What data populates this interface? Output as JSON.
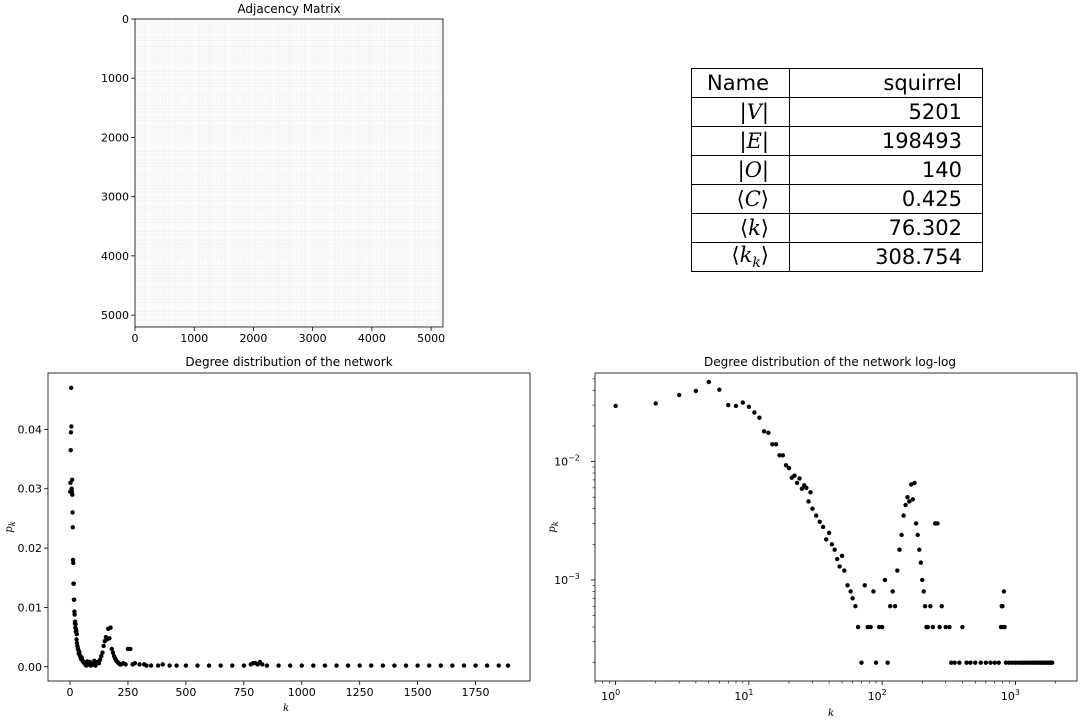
{
  "chart_data": [
    {
      "type": "heatmap",
      "title": "Adjacency Matrix",
      "xlim": [
        0,
        5201
      ],
      "ylim": [
        5201,
        0
      ],
      "xticks": [
        0,
        1000,
        2000,
        3000,
        4000,
        5000
      ],
      "yticks": [
        0,
        1000,
        2000,
        3000,
        4000,
        5000
      ],
      "grid": false
    },
    {
      "type": "table",
      "rows": [
        {
          "key": "Name",
          "value": "squirrel"
        },
        {
          "key": "|V|",
          "value": "5201"
        },
        {
          "key": "|E|",
          "value": "198493"
        },
        {
          "key": "|O|",
          "value": "140"
        },
        {
          "key": "⟨C⟩",
          "value": "0.425"
        },
        {
          "key": "⟨k⟩",
          "value": "76.302"
        },
        {
          "key": "⟨k_k⟩",
          "value": "308.754"
        }
      ]
    },
    {
      "type": "scatter",
      "title": "Degree distribution of the network",
      "xlabel": "k",
      "ylabel": "p_k",
      "xlim": [
        -95,
        1985
      ],
      "ylim": [
        -0.0024,
        0.0495
      ],
      "xticks": [
        0,
        250,
        500,
        750,
        1000,
        1250,
        1500,
        1750
      ],
      "yticks": [
        0,
        0.01,
        0.02,
        0.03,
        0.04
      ],
      "ytick_labels": [
        "0.00",
        "0.01",
        "0.02",
        "0.03",
        "0.04"
      ],
      "color": "#000000",
      "x": [
        1,
        2,
        3,
        4,
        5,
        6,
        7,
        8,
        9,
        10,
        11,
        12,
        13,
        14,
        15,
        16,
        17,
        18,
        19,
        20,
        21,
        22,
        23,
        24,
        25,
        26,
        27,
        28,
        29,
        30,
        32,
        34,
        36,
        38,
        40,
        42,
        44,
        46,
        48,
        50,
        52,
        55,
        58,
        60,
        63,
        66,
        70,
        74,
        78,
        82,
        86,
        90,
        95,
        100,
        105,
        110,
        115,
        120,
        125,
        130,
        135,
        140,
        145,
        150,
        155,
        160,
        165,
        170,
        175,
        180,
        185,
        190,
        195,
        200,
        205,
        210,
        215,
        220,
        230,
        240,
        250,
        260,
        270,
        280,
        300,
        320,
        330,
        350,
        380,
        400,
        430,
        460,
        500,
        550,
        600,
        650,
        700,
        750,
        780,
        790,
        800,
        810,
        820,
        830,
        850,
        900,
        950,
        1000,
        1050,
        1100,
        1150,
        1200,
        1250,
        1300,
        1350,
        1400,
        1450,
        1500,
        1550,
        1600,
        1650,
        1700,
        1750,
        1800,
        1850,
        1890
      ],
      "y": [
        0.0295,
        0.031,
        0.0365,
        0.0395,
        0.047,
        0.0405,
        0.03,
        0.0295,
        0.0315,
        0.029,
        0.026,
        0.0235,
        0.018,
        0.0175,
        0.014,
        0.014,
        0.0113,
        0.0113,
        0.0093,
        0.0088,
        0.0073,
        0.0076,
        0.0066,
        0.0072,
        0.0059,
        0.0063,
        0.006,
        0.0046,
        0.0055,
        0.004,
        0.0035,
        0.0031,
        0.0028,
        0.0022,
        0.0025,
        0.002,
        0.0018,
        0.0015,
        0.0013,
        0.0016,
        0.0012,
        0.0009,
        0.0008,
        0.0007,
        0.0006,
        0.0004,
        0.0002,
        0.0009,
        0.0004,
        0.0004,
        0.0008,
        0.0002,
        0.0004,
        0.0004,
        0.001,
        0.0002,
        0.0006,
        0.0008,
        0.0006,
        0.0012,
        0.0018,
        0.0024,
        0.0035,
        0.0043,
        0.005,
        0.0046,
        0.0064,
        0.0048,
        0.0066,
        0.003,
        0.0024,
        0.0018,
        0.0014,
        0.001,
        0.0008,
        0.0006,
        0.0004,
        0.0004,
        0.0006,
        0.0004,
        0.003,
        0.003,
        0.0004,
        0.0006,
        0.0004,
        0.0004,
        0.0002,
        0.0002,
        0.0002,
        0.0004,
        0.0002,
        0.0002,
        0.0002,
        0.0002,
        0.0002,
        0.0002,
        0.0002,
        0.0002,
        0.0004,
        0.0006,
        0.0006,
        0.0004,
        0.0008,
        0.0004,
        0.0002,
        0.0002,
        0.0002,
        0.0002,
        0.0002,
        0.0002,
        0.0002,
        0.0002,
        0.0002,
        0.0002,
        0.0002,
        0.0002,
        0.0002,
        0.0002,
        0.0002,
        0.0002,
        0.0002,
        0.0002,
        0.0002,
        0.0002,
        0.0002,
        0.0002
      ]
    },
    {
      "type": "scatter",
      "title": "Degree distribution of the network log-log",
      "xlabel": "k",
      "ylabel": "p_k",
      "x_scale": "log",
      "y_scale": "log",
      "xlim": [
        0.7,
        2900
      ],
      "ylim": [
        0.00014,
        0.056
      ],
      "xticks": [
        1,
        10,
        100,
        1000
      ],
      "xtick_labels": [
        "10^0",
        "10^1",
        "10^2",
        "10^3"
      ],
      "yticks": [
        0.001,
        0.01
      ],
      "ytick_labels": [
        "10^-3",
        "10^-2"
      ],
      "color": "#000000",
      "x": [
        1,
        2,
        3,
        4,
        5,
        6,
        7,
        8,
        9,
        10,
        11,
        12,
        13,
        14,
        15,
        16,
        17,
        18,
        19,
        20,
        21,
        22,
        23,
        24,
        25,
        26,
        27,
        28,
        29,
        30,
        32,
        34,
        36,
        38,
        40,
        42,
        44,
        46,
        48,
        50,
        52,
        55,
        58,
        60,
        63,
        66,
        70,
        74,
        78,
        82,
        86,
        90,
        95,
        100,
        105,
        110,
        115,
        120,
        125,
        130,
        135,
        140,
        145,
        150,
        155,
        160,
        165,
        170,
        175,
        180,
        185,
        190,
        195,
        200,
        205,
        210,
        215,
        220,
        230,
        240,
        250,
        260,
        270,
        280,
        300,
        320,
        330,
        350,
        380,
        400,
        430,
        460,
        500,
        550,
        600,
        650,
        700,
        750,
        780,
        790,
        800,
        810,
        820,
        830,
        850,
        900,
        950,
        1000,
        1050,
        1100,
        1150,
        1200,
        1250,
        1300,
        1350,
        1400,
        1450,
        1500,
        1550,
        1600,
        1650,
        1700,
        1750,
        1800,
        1850,
        1890
      ],
      "y": [
        0.0295,
        0.031,
        0.0365,
        0.0395,
        0.047,
        0.0405,
        0.03,
        0.0295,
        0.0315,
        0.029,
        0.026,
        0.0235,
        0.018,
        0.0175,
        0.014,
        0.014,
        0.0113,
        0.0113,
        0.0093,
        0.0088,
        0.0073,
        0.0076,
        0.0066,
        0.0072,
        0.0059,
        0.0063,
        0.006,
        0.0046,
        0.0055,
        0.004,
        0.0035,
        0.0031,
        0.0028,
        0.0022,
        0.0025,
        0.002,
        0.0018,
        0.0015,
        0.0013,
        0.0016,
        0.0012,
        0.0009,
        0.0008,
        0.0007,
        0.0006,
        0.0004,
        0.0002,
        0.0009,
        0.0004,
        0.0004,
        0.0008,
        0.0002,
        0.0004,
        0.0004,
        0.001,
        0.0002,
        0.0006,
        0.0008,
        0.0006,
        0.0012,
        0.0018,
        0.0024,
        0.0035,
        0.0043,
        0.005,
        0.0046,
        0.0064,
        0.0048,
        0.0066,
        0.003,
        0.0024,
        0.0018,
        0.0014,
        0.001,
        0.0008,
        0.0006,
        0.0004,
        0.0004,
        0.0006,
        0.0004,
        0.003,
        0.003,
        0.0004,
        0.0006,
        0.0004,
        0.0004,
        0.0002,
        0.0002,
        0.0002,
        0.0004,
        0.0002,
        0.0002,
        0.0002,
        0.0002,
        0.0002,
        0.0002,
        0.0002,
        0.0002,
        0.0004,
        0.0006,
        0.0006,
        0.0004,
        0.0008,
        0.0004,
        0.0002,
        0.0002,
        0.0002,
        0.0002,
        0.0002,
        0.0002,
        0.0002,
        0.0002,
        0.0002,
        0.0002,
        0.0002,
        0.0002,
        0.0002,
        0.0002,
        0.0002,
        0.0002,
        0.0002,
        0.0002,
        0.0002,
        0.0002,
        0.0002,
        0.0002
      ]
    }
  ]
}
